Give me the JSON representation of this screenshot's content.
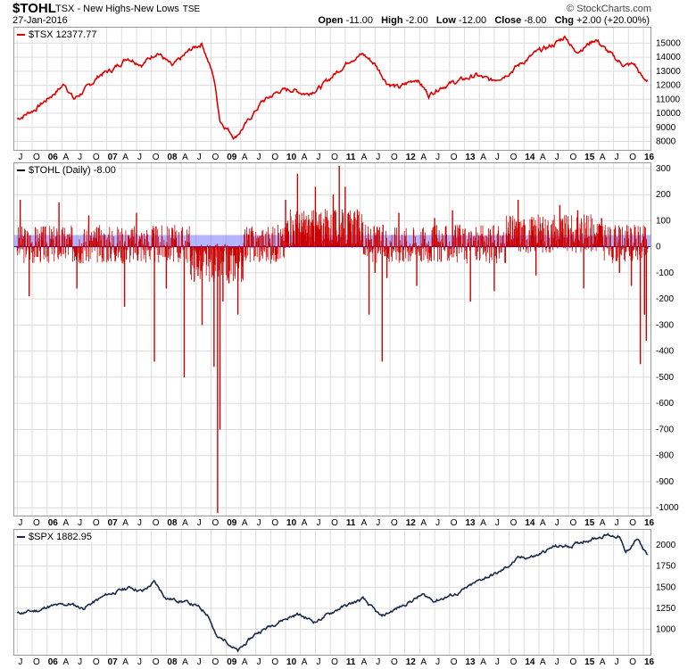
{
  "header": {
    "symbol": "$TOHL",
    "description": "TSX - New Highs-New Lows",
    "exchange": "TSE",
    "date": "27-Jan-2016",
    "brand": "© StockCharts.com",
    "open_label": "Open",
    "open": "-11.00",
    "high_label": "High",
    "high": "-2.00",
    "low_label": "Low",
    "low": "-12.00",
    "close_label": "Close",
    "close": "-8.00",
    "chg_label": "Chg",
    "chg": "+2.00 (+20.00%)"
  },
  "colors": {
    "tsx": "#e00000",
    "tohl": "#cc0000",
    "spx": "#1a2a4a",
    "band": "#7777ff"
  },
  "chart_data": [
    {
      "type": "line",
      "legend": "$TSX 12377.77",
      "x_ticks": [
        "J",
        "O",
        "06",
        "A",
        "J",
        "O",
        "07",
        "A",
        "J",
        "O",
        "08",
        "A",
        "J",
        "O",
        "09",
        "A",
        "J",
        "O",
        "10",
        "A",
        "J",
        "O",
        "11",
        "A",
        "J",
        "O",
        "12",
        "A",
        "J",
        "O",
        "13",
        "A",
        "J",
        "O",
        "14",
        "A",
        "J",
        "O",
        "15",
        "A",
        "J",
        "O",
        "16"
      ],
      "y_ticks": [
        8000,
        9000,
        10000,
        11000,
        12000,
        13000,
        14000,
        15000
      ],
      "ylim": [
        7400,
        16100
      ],
      "series": [
        {
          "x": [
            2005.5,
            2005.8,
            2006.0,
            2006.3,
            2006.45,
            2006.7,
            2006.9,
            2007.1,
            2007.35,
            2007.6,
            2007.85,
            2008.1,
            2008.4,
            2008.6,
            2008.8,
            2008.9,
            2009.15,
            2009.35,
            2009.6,
            2009.9,
            2010.1,
            2010.35,
            2010.6,
            2010.85,
            2011.1,
            2011.3,
            2011.5,
            2011.7,
            2011.9,
            2012.2,
            2012.4,
            2012.6,
            2012.9,
            2013.2,
            2013.45,
            2013.7,
            2013.9,
            2014.2,
            2014.5,
            2014.7,
            2014.85,
            2015.0,
            2015.2,
            2015.35,
            2015.55,
            2015.7,
            2015.85,
            2016.0,
            2016.07
          ],
          "values": [
            9600,
            10300,
            11000,
            12100,
            11000,
            11900,
            12800,
            13100,
            14000,
            13500,
            14400,
            13300,
            14500,
            15000,
            12500,
            9500,
            8300,
            9300,
            10800,
            11600,
            11700,
            11400,
            11900,
            12900,
            13900,
            14200,
            13500,
            12200,
            11800,
            12500,
            11300,
            11900,
            12300,
            12700,
            12300,
            12800,
            13400,
            14300,
            14900,
            15500,
            14400,
            14700,
            15300,
            14600,
            13800,
            13400,
            13500,
            12400,
            12378
          ]
        }
      ]
    },
    {
      "type": "bar",
      "legend": "$TOHL (Daily) -8.00",
      "x_ticks": [
        "J",
        "O",
        "06",
        "A",
        "J",
        "O",
        "07",
        "A",
        "J",
        "O",
        "08",
        "A",
        "J",
        "O",
        "09",
        "A",
        "J",
        "O",
        "10",
        "A",
        "J",
        "O",
        "11",
        "A",
        "J",
        "O",
        "12",
        "A",
        "J",
        "O",
        "13",
        "A",
        "J",
        "O",
        "14",
        "A",
        "J",
        "O",
        "15",
        "A",
        "J",
        "O",
        "16"
      ],
      "y_ticks": [
        300,
        200,
        100,
        0,
        -100,
        -200,
        -300,
        -400,
        -500,
        -600,
        -700,
        -800,
        -900,
        -1000
      ],
      "ylim": [
        -1030,
        320
      ],
      "band": [
        0,
        45
      ],
      "spikes": {
        "x": [
          2005.55,
          2005.7,
          2006.2,
          2006.5,
          2006.7,
          2007.3,
          2007.5,
          2007.8,
          2008.0,
          2008.3,
          2008.6,
          2008.8,
          2008.86,
          2008.9,
          2008.95,
          2009.05,
          2009.2,
          2009.35,
          2010.0,
          2010.2,
          2010.5,
          2010.8,
          2010.9,
          2011.0,
          2011.4,
          2011.5,
          2011.62,
          2011.7,
          2011.9,
          2012.2,
          2012.5,
          2012.8,
          2013.1,
          2013.5,
          2013.9,
          2014.2,
          2014.6,
          2014.9,
          2015.0,
          2015.3,
          2015.6,
          2015.8,
          2015.95,
          2016.02,
          2016.05,
          2016.07
        ],
        "values": [
          180,
          -190,
          170,
          -160,
          120,
          -230,
          130,
          -440,
          -160,
          -500,
          -300,
          -460,
          -1020,
          -700,
          -210,
          -140,
          -260,
          50,
          180,
          280,
          230,
          200,
          310,
          230,
          -260,
          -100,
          -440,
          -120,
          130,
          -150,
          110,
          140,
          -210,
          -170,
          180,
          -110,
          160,
          140,
          -160,
          110,
          -100,
          -150,
          -450,
          -260,
          -360,
          -8
        ]
      }
    },
    {
      "type": "line",
      "legend": "$SPX 1882.95",
      "x_ticks": [
        "J",
        "O",
        "06",
        "A",
        "J",
        "O",
        "07",
        "A",
        "J",
        "O",
        "08",
        "A",
        "J",
        "O",
        "09",
        "A",
        "J",
        "O",
        "10",
        "A",
        "J",
        "O",
        "11",
        "A",
        "J",
        "O",
        "12",
        "A",
        "J",
        "O",
        "13",
        "A",
        "J",
        "O",
        "14",
        "A",
        "J",
        "O",
        "15",
        "A",
        "J",
        "O",
        "16"
      ],
      "y_ticks": [
        1000,
        1250,
        1500,
        1750,
        2000
      ],
      "ylim": [
        700,
        2180
      ],
      "series": [
        {
          "x": [
            2005.5,
            2005.9,
            2006.0,
            2006.4,
            2006.6,
            2007.0,
            2007.4,
            2007.6,
            2007.8,
            2008.0,
            2008.3,
            2008.5,
            2008.7,
            2008.85,
            2009.0,
            2009.2,
            2009.5,
            2009.9,
            2010.2,
            2010.5,
            2010.9,
            2011.3,
            2011.6,
            2011.9,
            2012.3,
            2012.5,
            2012.9,
            2013.3,
            2013.6,
            2013.9,
            2014.2,
            2014.5,
            2014.8,
            2015.0,
            2015.4,
            2015.6,
            2015.7,
            2015.9,
            2016.0,
            2016.07
          ],
          "values": [
            1190,
            1230,
            1270,
            1300,
            1250,
            1410,
            1500,
            1450,
            1560,
            1370,
            1330,
            1280,
            1180,
            900,
            870,
            740,
            950,
            1100,
            1180,
            1090,
            1250,
            1360,
            1150,
            1260,
            1410,
            1340,
            1430,
            1600,
            1680,
            1840,
            1870,
            1980,
            1990,
            2050,
            2120,
            2100,
            1900,
            2080,
            1940,
            1883
          ]
        }
      ]
    }
  ]
}
